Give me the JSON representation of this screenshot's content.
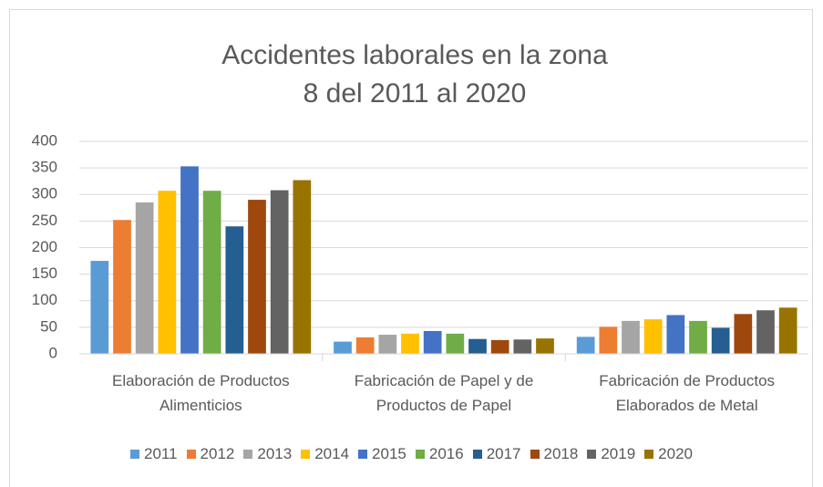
{
  "chart_data": {
    "type": "bar",
    "title": "Accidentes laborales en la zona 8 del 2011 al 2020",
    "categories": [
      "Elaboración de Productos Alimenticios",
      "Fabricación de Papel y de Productos de Papel",
      "Fabricación de Productos Elaborados de Metal"
    ],
    "series": [
      {
        "name": "2011",
        "color": "#5b9bd5",
        "values": [
          175,
          23,
          32
        ]
      },
      {
        "name": "2012",
        "color": "#ed7d31",
        "values": [
          252,
          31,
          51
        ]
      },
      {
        "name": "2013",
        "color": "#a5a5a5",
        "values": [
          285,
          36,
          62
        ]
      },
      {
        "name": "2014",
        "color": "#ffc000",
        "values": [
          307,
          38,
          65
        ]
      },
      {
        "name": "2015",
        "color": "#4472c4",
        "values": [
          353,
          43,
          73
        ]
      },
      {
        "name": "2016",
        "color": "#70ad47",
        "values": [
          307,
          38,
          62
        ]
      },
      {
        "name": "2017",
        "color": "#255e91",
        "values": [
          240,
          28,
          49
        ]
      },
      {
        "name": "2018",
        "color": "#9e480e",
        "values": [
          290,
          26,
          75
        ]
      },
      {
        "name": "2019",
        "color": "#636363",
        "values": [
          308,
          27,
          82
        ]
      },
      {
        "name": "2020",
        "color": "#997300",
        "values": [
          327,
          29,
          87
        ]
      }
    ],
    "ylim": [
      0,
      400
    ],
    "yticks": [
      0,
      50,
      100,
      150,
      200,
      250,
      300,
      350,
      400
    ],
    "grid": true,
    "legend": "bottom"
  }
}
